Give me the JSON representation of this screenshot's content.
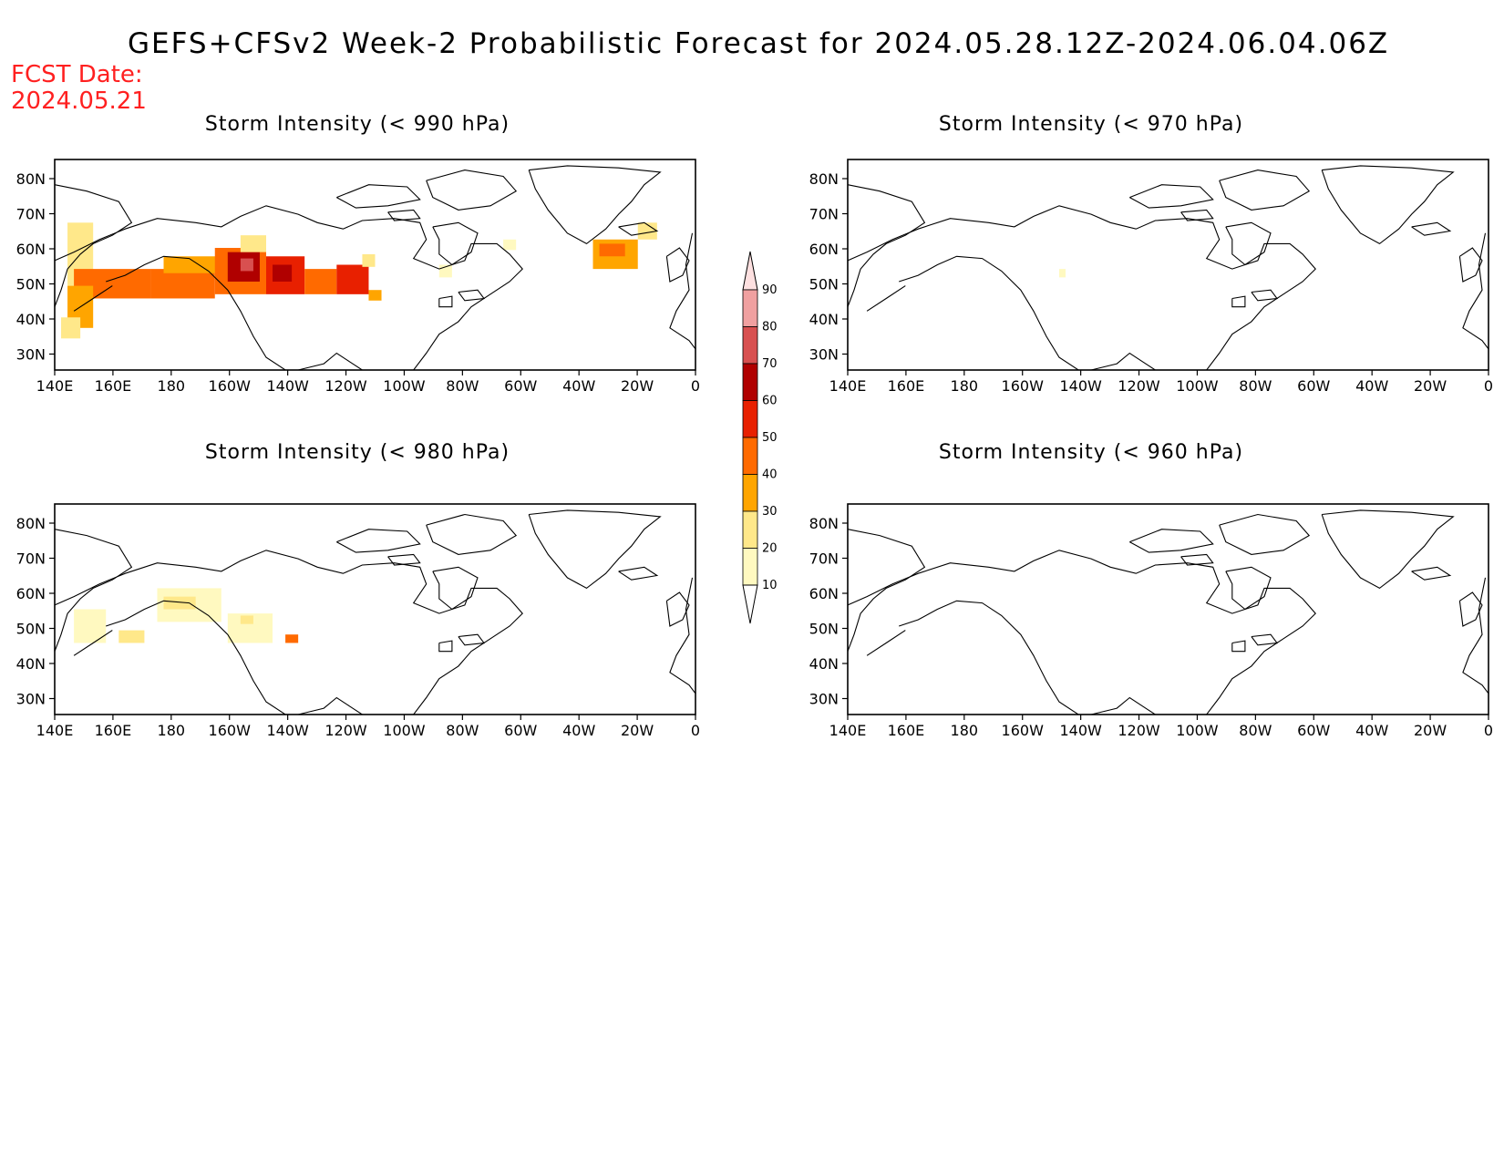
{
  "title": "GEFS+CFSv2 Week-2 Probabilistic Forecast for 2024.05.28.12Z-2024.06.04.06Z",
  "fcst_date": {
    "label": "FCST Date:",
    "value": "2024.05.21"
  },
  "panels": [
    {
      "id": "p990",
      "title": "Storm Intensity (< 990 hPa)"
    },
    {
      "id": "p970",
      "title": "Storm Intensity (< 970 hPa)"
    },
    {
      "id": "p980",
      "title": "Storm Intensity (< 980 hPa)"
    },
    {
      "id": "p960",
      "title": "Storm Intensity (< 960 hPa)"
    }
  ],
  "axes": {
    "lat_labels": [
      "80N",
      "70N",
      "60N",
      "50N",
      "40N",
      "30N"
    ],
    "lon_labels": [
      "140E",
      "160E",
      "180",
      "160W",
      "140W",
      "120W",
      "100W",
      "80W",
      "60W",
      "40W",
      "20W",
      "0"
    ]
  },
  "colorbar": {
    "levels": [
      "10",
      "20",
      "30",
      "40",
      "50",
      "60",
      "70",
      "80",
      "90"
    ],
    "colors": [
      "#fff9c0",
      "#ffe88a",
      "#ffa500",
      "#ff6a00",
      "#e82000",
      "#b00000",
      "#d85050",
      "#f0a0a0",
      "#fde0e0"
    ]
  }
}
